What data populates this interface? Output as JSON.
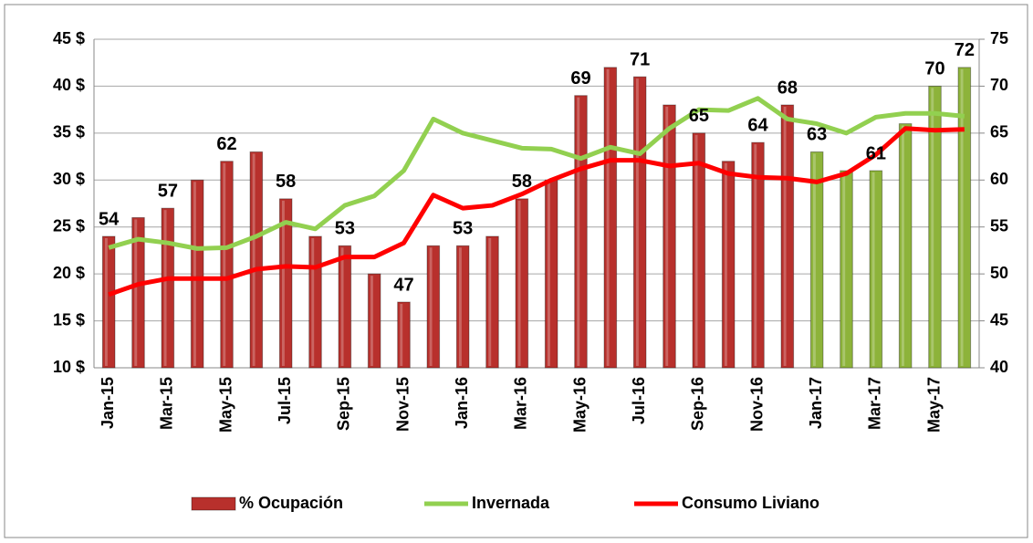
{
  "chart_data": {
    "type": "bar_line_combo",
    "categories": [
      "Jan-15",
      null,
      "Mar-15",
      null,
      "May-15",
      null,
      "Jul-15",
      null,
      "Sep-15",
      null,
      "Nov-15",
      null,
      "Jan-16",
      null,
      "Mar-16",
      null,
      "May-16",
      null,
      "Jul-16",
      null,
      "Sep-16",
      null,
      "Nov-16",
      null,
      "Jan-17",
      null,
      "Mar-17",
      null,
      "May-17",
      null
    ],
    "series": [
      {
        "name": "% Ocupación",
        "kind": "bar",
        "axis": "y2",
        "color": "#b8302c",
        "colors": [
          "#b8302c",
          "#b8302c",
          "#b8302c",
          "#b8302c",
          "#b8302c",
          "#b8302c",
          "#b8302c",
          "#b8302c",
          "#b8302c",
          "#b8302c",
          "#b8302c",
          "#b8302c",
          "#b8302c",
          "#b8302c",
          "#b8302c",
          "#b8302c",
          "#b8302c",
          "#b8302c",
          "#b8302c",
          "#b8302c",
          "#b8302c",
          "#b8302c",
          "#b8302c",
          "#b8302c",
          "#8db33a",
          "#8db33a",
          "#8db33a",
          "#8db33a",
          "#8db33a",
          "#8db33a"
        ],
        "values": [
          54,
          56,
          57,
          60,
          62,
          63,
          58,
          54,
          53,
          50,
          47,
          53,
          53,
          54,
          58,
          60,
          69,
          72,
          71,
          68,
          65,
          62,
          64,
          68,
          63,
          61,
          61,
          66,
          70,
          72
        ],
        "value_labels": [
          "54",
          null,
          "57",
          null,
          "62",
          null,
          "58",
          null,
          "53",
          null,
          "47",
          null,
          "53",
          null,
          "58",
          null,
          "69",
          null,
          "71",
          null,
          "65",
          null,
          "64",
          "68",
          "63",
          null,
          "61",
          null,
          "70",
          "72"
        ]
      },
      {
        "name": "Invernada",
        "kind": "line",
        "color": "#92d050",
        "values": [
          22.8,
          23.7,
          23.3,
          22.7,
          22.8,
          24.0,
          25.5,
          24.8,
          27.3,
          28.3,
          31.0,
          36.5,
          35.0,
          34.2,
          33.4,
          33.3,
          32.3,
          33.5,
          32.8,
          35.5,
          37.5,
          37.4,
          38.7,
          36.5,
          36.0,
          35.0,
          36.7,
          37.1,
          37.1,
          36.8
        ]
      },
      {
        "name": "Consumo Liviano",
        "kind": "line",
        "color": "#ff0000",
        "values": [
          17.8,
          18.9,
          19.5,
          19.5,
          19.5,
          20.5,
          20.8,
          20.7,
          21.8,
          21.8,
          23.3,
          28.4,
          27.0,
          27.3,
          28.5,
          30.0,
          31.2,
          32.1,
          32.1,
          31.5,
          31.8,
          30.7,
          30.3,
          30.2,
          29.8,
          30.7,
          32.7,
          35.5,
          35.3,
          35.4
        ]
      }
    ],
    "ylim": [
      10,
      45
    ],
    "yticks": [
      {
        "value": 10,
        "label": "10 $"
      },
      {
        "value": 15,
        "label": "15 $"
      },
      {
        "value": 20,
        "label": "20 $"
      },
      {
        "value": 25,
        "label": "25 $"
      },
      {
        "value": 30,
        "label": "30 $"
      },
      {
        "value": 35,
        "label": "35 $"
      },
      {
        "value": 40,
        "label": "40 $"
      },
      {
        "value": 45,
        "label": "45 $"
      }
    ],
    "y2lim": [
      40,
      75
    ],
    "y2ticks": [
      40,
      45,
      50,
      55,
      60,
      65,
      70,
      75
    ],
    "grid": true,
    "legend": "bottom"
  }
}
